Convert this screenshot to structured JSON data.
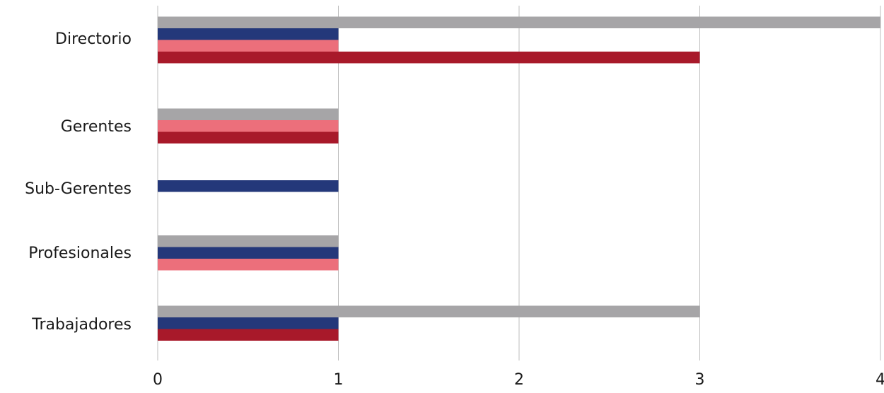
{
  "chart_data": {
    "type": "bar",
    "orientation": "horizontal",
    "categories": [
      "Directorio",
      "Gerentes",
      "Sub-Gerentes",
      "Profesionales",
      "Trabajadores"
    ],
    "series": [
      {
        "color": "#a6a5a7",
        "values": [
          4,
          1,
          0,
          1,
          3
        ]
      },
      {
        "color": "#24387a",
        "values": [
          1,
          0,
          1,
          1,
          1
        ]
      },
      {
        "color": "#ec6f7b",
        "values": [
          1,
          1,
          0,
          1,
          0
        ]
      },
      {
        "color": "#a8192a",
        "values": [
          3,
          1,
          0,
          0,
          1
        ]
      }
    ],
    "xlim": [
      0,
      4
    ],
    "xticks": [
      "0",
      "1",
      "2",
      "3",
      "4"
    ],
    "grid": true
  }
}
